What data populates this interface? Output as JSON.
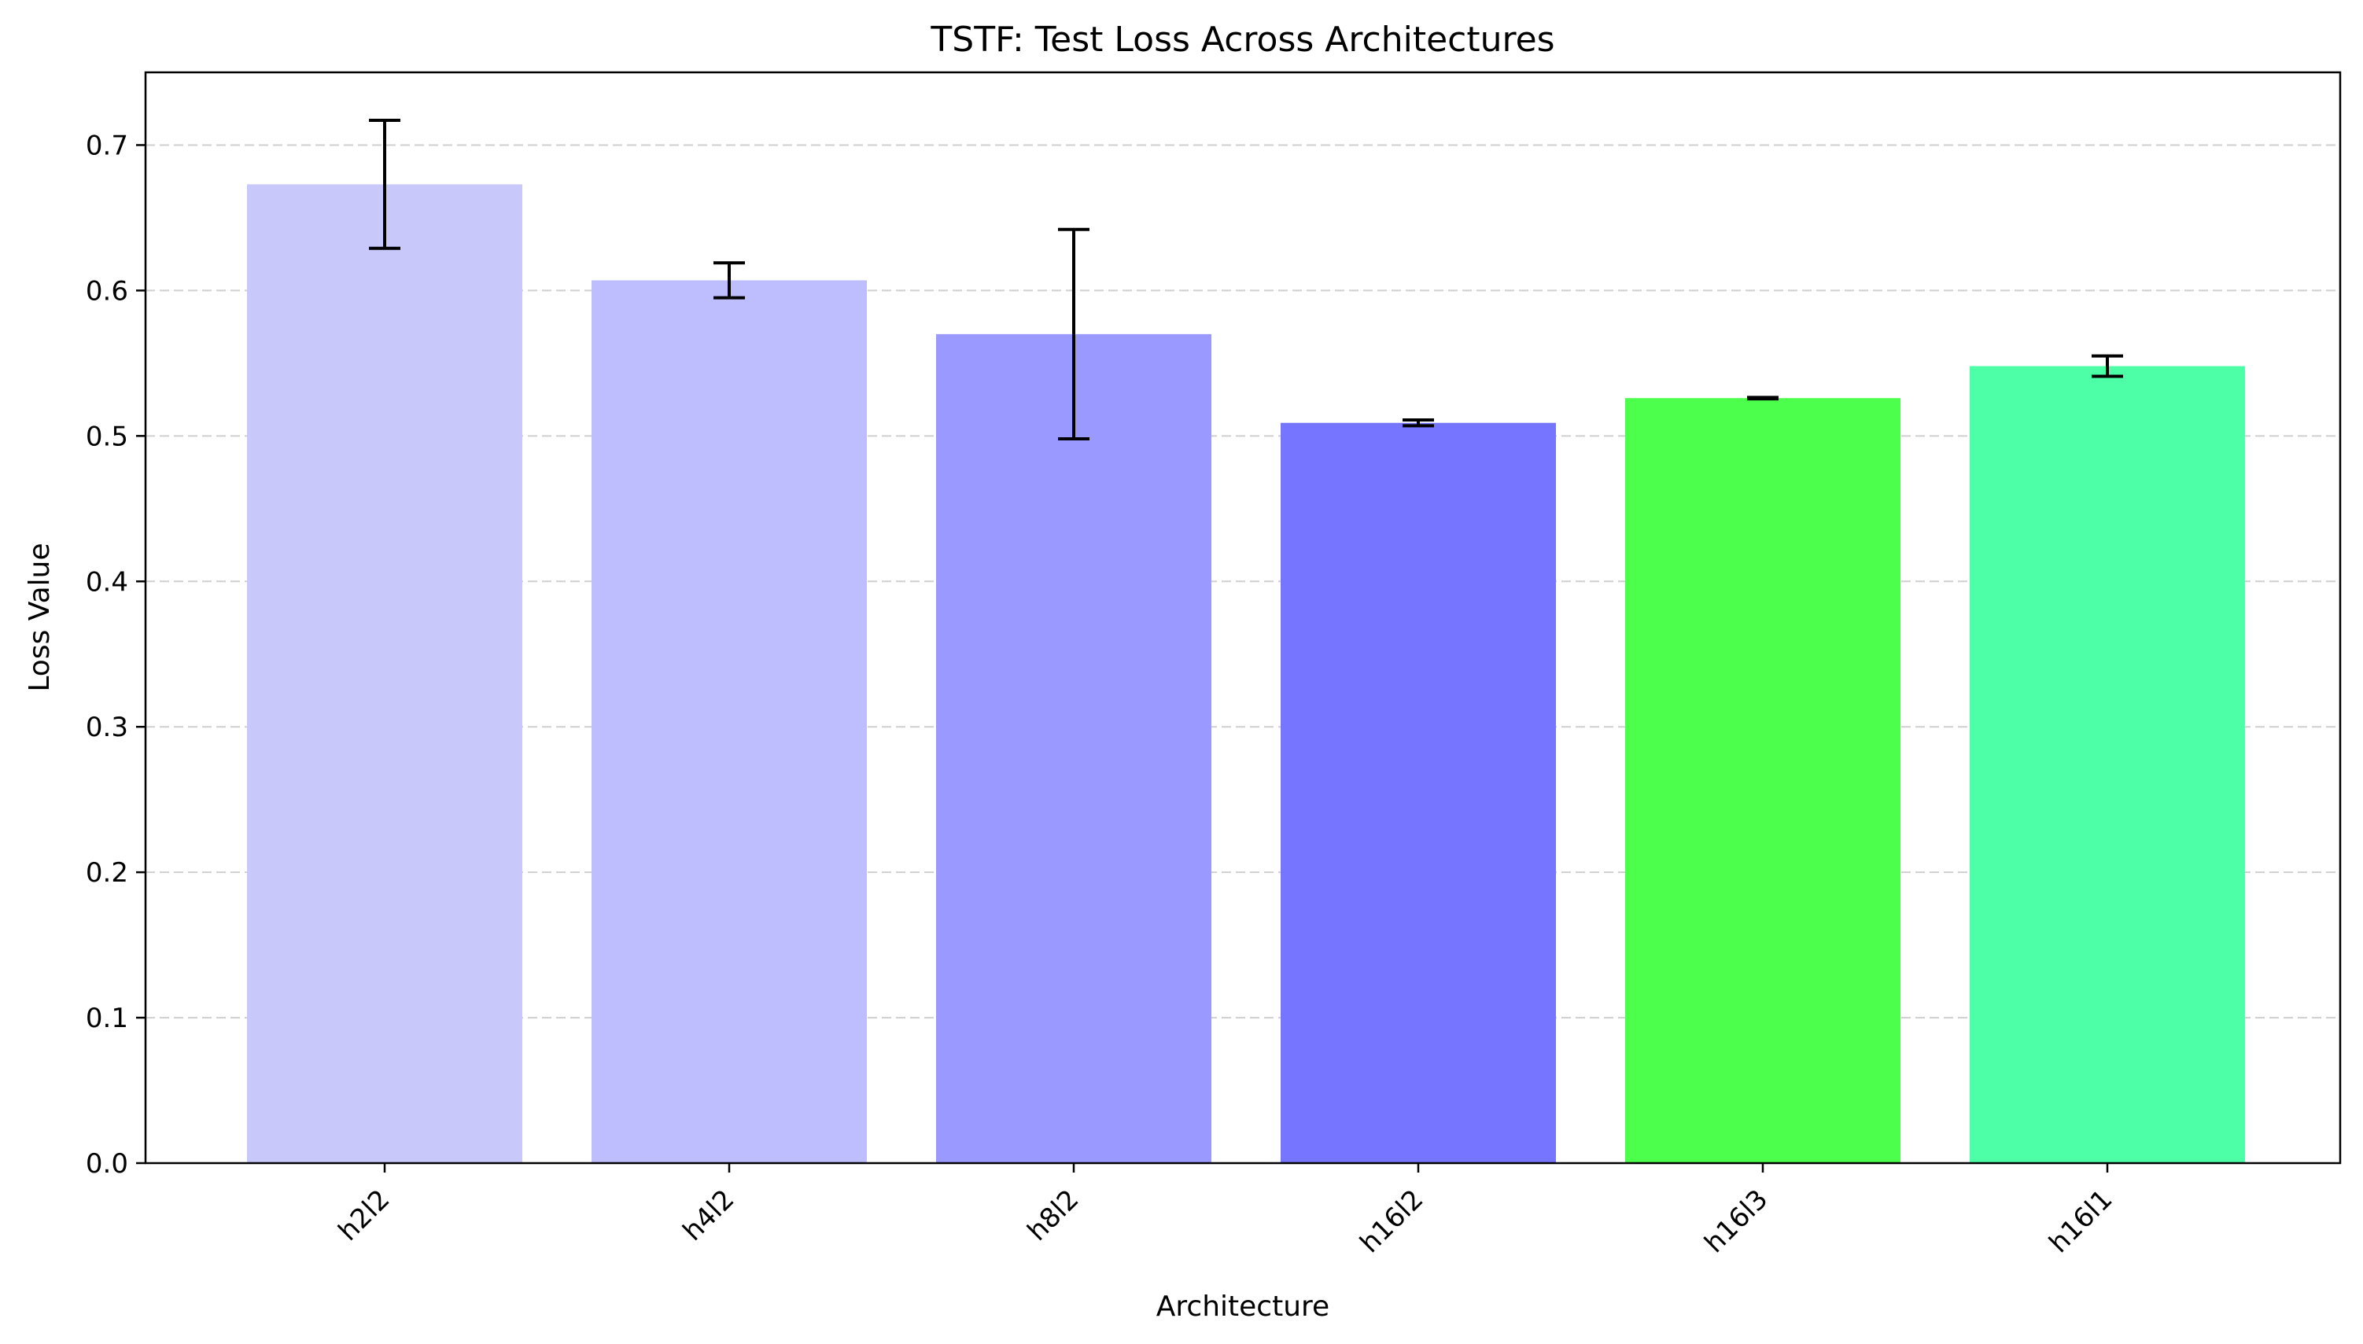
{
  "chart_data": {
    "type": "bar",
    "title": "TSTF: Test Loss Across Architectures",
    "xlabel": "Architecture",
    "ylabel": "Loss Value",
    "categories": [
      "h2l2",
      "h4l2",
      "h8l2",
      "h16l2",
      "h16l3",
      "h16l1"
    ],
    "values": [
      0.673,
      0.607,
      0.57,
      0.509,
      0.526,
      0.548
    ],
    "errors": [
      0.044,
      0.012,
      0.072,
      0.002,
      0.0005,
      0.007
    ],
    "colors": [
      "#c8c8fa",
      "#bebeff",
      "#9999ff",
      "#7575ff",
      "#4cff4c",
      "#4dffa6"
    ],
    "ylim": [
      0,
      0.75
    ],
    "yticks": [
      "0.0",
      "0.1",
      "0.2",
      "0.3",
      "0.4",
      "0.5",
      "0.6",
      "0.7"
    ],
    "grid": "y-dashed",
    "legend": "none"
  }
}
